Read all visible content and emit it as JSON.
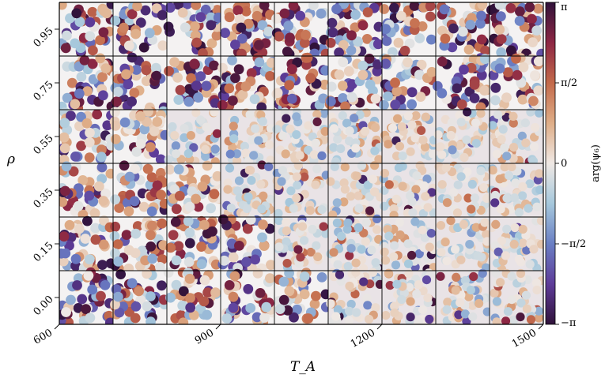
{
  "chart_data": {
    "type": "heatmap",
    "title": "",
    "xlabel": "T_A",
    "ylabel": "ρ",
    "x_ticks": [
      "600",
      "900",
      "1200",
      "1500"
    ],
    "y_ticks": [
      "0.95",
      "0.75",
      "0.55",
      "0.35",
      "0.15",
      "0.00"
    ],
    "rows": [
      "0.95",
      "0.75",
      "0.55",
      "0.35",
      "0.15",
      "0.00"
    ],
    "columns": 9,
    "colormap": "twilight_shifted",
    "colorbar": {
      "label": "arg(ψ₆)",
      "ticks": [
        "π",
        "π/2",
        "0",
        "−π/2",
        "−π"
      ],
      "range": [
        -3.14159,
        3.14159
      ]
    },
    "order_grid": [
      [
        0,
        0,
        0,
        0,
        0,
        0,
        0,
        0,
        0
      ],
      [
        0,
        0,
        0,
        0,
        0,
        0.15,
        0.1,
        0.05,
        0.55
      ],
      [
        0.35,
        0.35,
        0.75,
        0.85,
        0.85,
        0.9,
        0.9,
        0.9,
        0.9
      ],
      [
        0.15,
        0.2,
        0.55,
        0.85,
        0.85,
        0.9,
        0.9,
        0.9,
        0.9
      ],
      [
        0.2,
        0.2,
        0.1,
        0.05,
        0.75,
        0.8,
        0.85,
        0.9,
        0.9
      ],
      [
        0.2,
        0.15,
        0.15,
        0.2,
        0.2,
        0.7,
        0.8,
        0.85,
        0.85
      ]
    ]
  }
}
